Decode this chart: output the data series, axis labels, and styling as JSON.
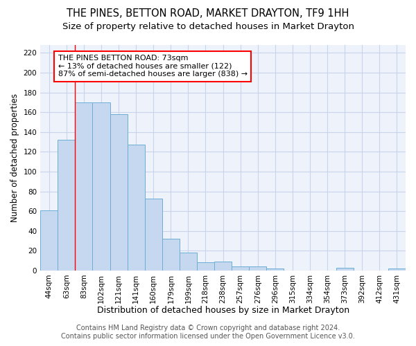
{
  "title": "THE PINES, BETTON ROAD, MARKET DRAYTON, TF9 1HH",
  "subtitle": "Size of property relative to detached houses in Market Drayton",
  "xlabel": "Distribution of detached houses by size in Market Drayton",
  "ylabel": "Number of detached properties",
  "categories": [
    "44sqm",
    "63sqm",
    "83sqm",
    "102sqm",
    "121sqm",
    "141sqm",
    "160sqm",
    "179sqm",
    "199sqm",
    "218sqm",
    "238sqm",
    "257sqm",
    "276sqm",
    "296sqm",
    "315sqm",
    "334sqm",
    "354sqm",
    "373sqm",
    "392sqm",
    "412sqm",
    "431sqm"
  ],
  "values": [
    61,
    132,
    170,
    170,
    158,
    127,
    73,
    32,
    18,
    8,
    9,
    4,
    4,
    2,
    0,
    0,
    0,
    3,
    0,
    0,
    2
  ],
  "bar_color": "#c5d8f0",
  "bar_edge_color": "#6baed6",
  "bar_edge_width": 0.7,
  "red_line_x": 1.5,
  "ylim": [
    0,
    228
  ],
  "yticks": [
    0,
    20,
    40,
    60,
    80,
    100,
    120,
    140,
    160,
    180,
    200,
    220
  ],
  "annotation_text": "THE PINES BETTON ROAD: 73sqm\n← 13% of detached houses are smaller (122)\n87% of semi-detached houses are larger (838) →",
  "footer_line1": "Contains HM Land Registry data © Crown copyright and database right 2024.",
  "footer_line2": "Contains public sector information licensed under the Open Government Licence v3.0.",
  "background_color": "#ffffff",
  "plot_bg_color": "#eef2fb",
  "grid_color": "#c8d4ea",
  "title_fontsize": 10.5,
  "subtitle_fontsize": 9.5,
  "xlabel_fontsize": 9,
  "ylabel_fontsize": 8.5,
  "tick_fontsize": 7.5,
  "footer_fontsize": 7,
  "ann_fontsize": 8
}
